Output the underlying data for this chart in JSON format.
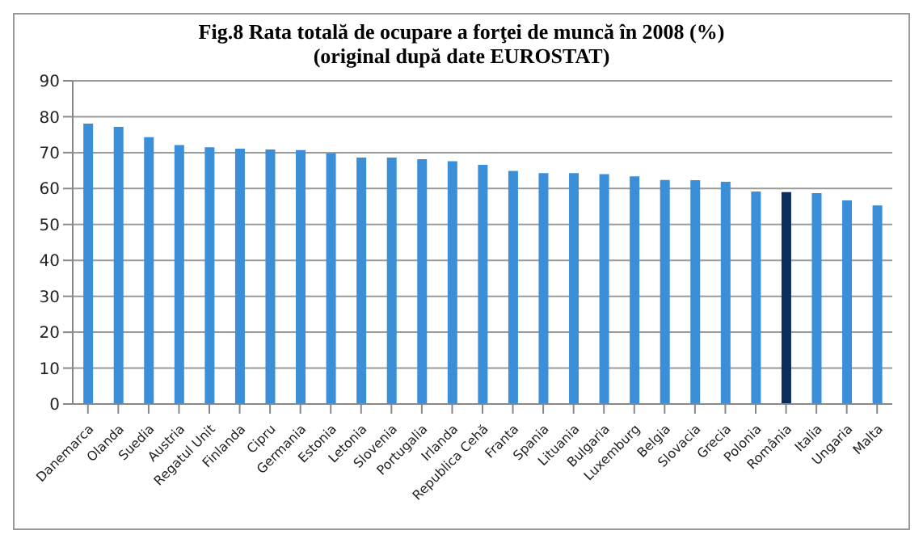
{
  "chart_data": {
    "type": "bar",
    "title": "Fig.8 Rata totală de ocupare a forţei de muncă în 2008 (%)",
    "subtitle": "(original după date EUROSTAT)",
    "categories": [
      "Danemarca",
      "Olanda",
      "Suedia",
      "Austria",
      "Regatul Unit",
      "Finlanda",
      "Cipru",
      "Germania",
      "Estonia",
      "Letonia",
      "Slovenia",
      "Portugalia",
      "Irlanda",
      "Republica Cehă",
      "Franta",
      "Spania",
      "Lituania",
      "Bulgaria",
      "Luxemburg",
      "Belgia",
      "Slovacia",
      "Grecia",
      "Polonia",
      "România",
      "Italia",
      "Ungaria",
      "Malta"
    ],
    "values": [
      78.1,
      77.2,
      74.3,
      72.1,
      71.5,
      71.1,
      70.9,
      70.7,
      69.8,
      68.6,
      68.6,
      68.2,
      67.6,
      66.6,
      64.9,
      64.3,
      64.3,
      64.0,
      63.4,
      62.4,
      62.3,
      61.9,
      59.2,
      59.0,
      58.7,
      56.7,
      55.3
    ],
    "colors": [
      "#3a8fd8",
      "#3a8fd8",
      "#3a8fd8",
      "#3a8fd8",
      "#3a8fd8",
      "#3a8fd8",
      "#3a8fd8",
      "#3a8fd8",
      "#3a8fd8",
      "#3a8fd8",
      "#3a8fd8",
      "#3a8fd8",
      "#3a8fd8",
      "#3a8fd8",
      "#3a8fd8",
      "#3a8fd8",
      "#3a8fd8",
      "#3a8fd8",
      "#3a8fd8",
      "#3a8fd8",
      "#3a8fd8",
      "#3a8fd8",
      "#3a8fd8",
      "#0a2d5c",
      "#3a8fd8",
      "#3a8fd8",
      "#3a8fd8"
    ],
    "ylim": [
      0,
      90
    ],
    "yticks": [
      0,
      10,
      20,
      30,
      40,
      50,
      60,
      70,
      80,
      90
    ],
    "grid": "y"
  }
}
